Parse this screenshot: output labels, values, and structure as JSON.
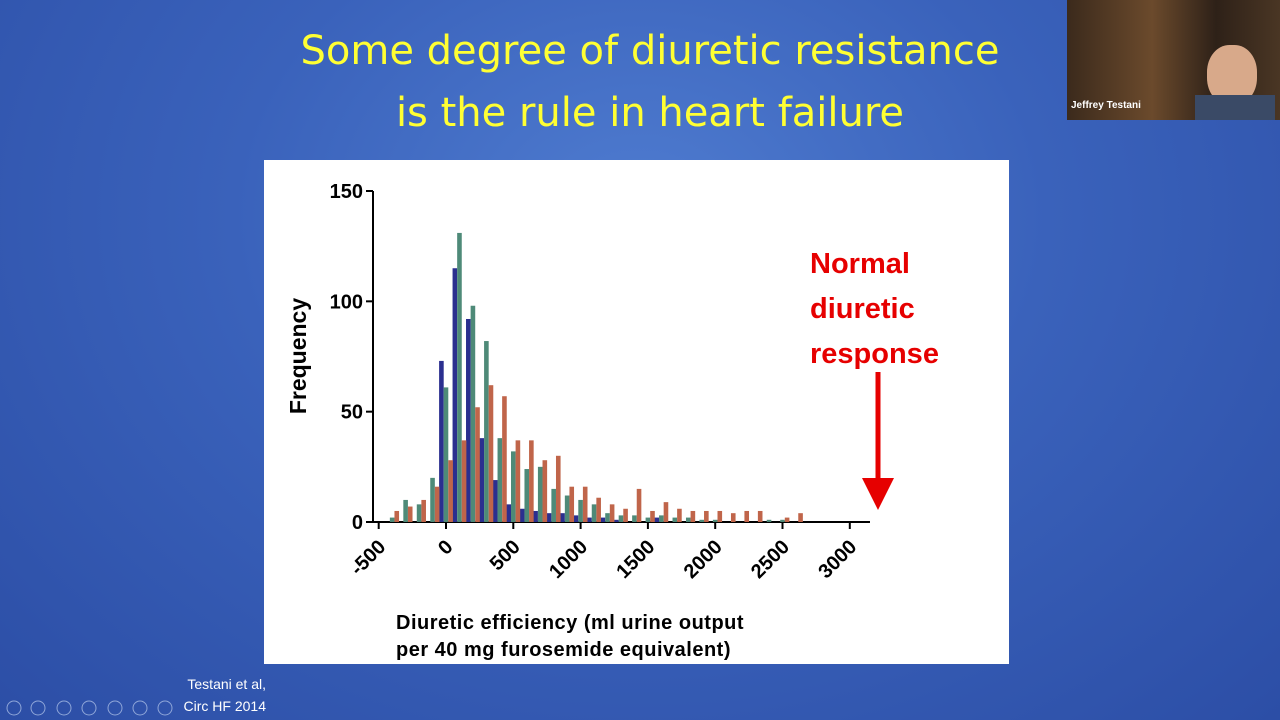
{
  "slide": {
    "title": [
      "Some degree of diuretic resistance",
      "is the rule in heart failure"
    ],
    "citation": [
      "Testani et al,",
      "Circ HF 2014"
    ]
  },
  "video": {
    "name": "Jeffrey Testani"
  },
  "chart_data": {
    "type": "bar",
    "ylabel": "Frequency",
    "xlabel": [
      "Diuretic efficiency (ml urine output",
      "per 40 mg furosemide equivalent)"
    ],
    "annotation": [
      "Normal",
      "diuretic",
      "response"
    ],
    "x": [
      -400,
      -300,
      -200,
      -100,
      0,
      100,
      200,
      300,
      400,
      500,
      600,
      700,
      800,
      900,
      1000,
      1100,
      1200,
      1300,
      1400,
      1500,
      1600,
      1700,
      1800,
      1900,
      2000,
      2100,
      2200,
      2300,
      2400,
      2500,
      2600
    ],
    "series": [
      {
        "color": "#2b2f8f",
        "values": [
          0,
          0,
          0,
          0,
          73,
          115,
          92,
          38,
          19,
          8,
          6,
          5,
          4,
          4,
          3,
          2,
          2,
          1,
          0,
          0,
          2,
          0,
          0,
          0,
          0,
          0,
          0,
          0,
          0,
          0,
          0
        ]
      },
      {
        "color": "#4e8a78",
        "values": [
          2,
          10,
          8,
          20,
          61,
          131,
          98,
          82,
          38,
          32,
          24,
          25,
          15,
          12,
          10,
          8,
          4,
          3,
          3,
          2,
          3,
          2,
          2,
          1,
          1,
          0,
          0,
          0,
          1,
          1,
          0
        ]
      },
      {
        "color": "#c0654a",
        "values": [
          5,
          7,
          10,
          16,
          28,
          37,
          52,
          62,
          57,
          37,
          37,
          28,
          30,
          16,
          16,
          11,
          8,
          6,
          15,
          5,
          9,
          6,
          5,
          5,
          5,
          4,
          5,
          5,
          0,
          2,
          4
        ]
      }
    ],
    "xlim": [
      -550,
      3150
    ],
    "ylim": [
      0,
      150
    ],
    "xticks": [
      -500,
      0,
      500,
      1000,
      1500,
      2000,
      2500,
      3000
    ],
    "yticks": [
      0,
      50,
      100,
      150
    ],
    "grid": false
  }
}
